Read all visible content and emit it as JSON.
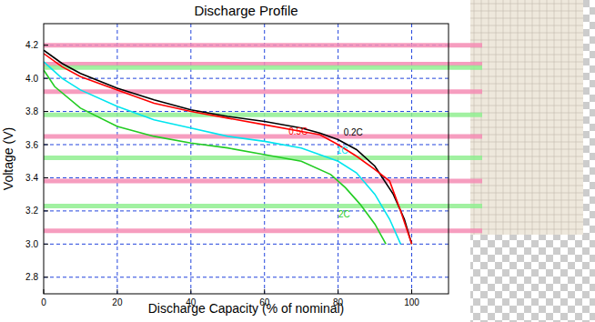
{
  "chart_data": {
    "type": "line",
    "title": "Discharge Profile",
    "x_label": "Discharge Capacity (% of nominal)",
    "y_label": "Voltage (V)",
    "xlim": [
      0,
      110
    ],
    "xticks": [
      0,
      20,
      40,
      60,
      80,
      100
    ],
    "ylim": [
      2.7,
      4.33
    ],
    "yticks": [
      2.8,
      {
        "value": 3,
        "label": "3.0"
      },
      3.2,
      3.4,
      3.6,
      3.8,
      {
        "value": 4,
        "label": "4.0"
      },
      4.2
    ],
    "grid": true,
    "series": [
      {
        "name": "0.2C",
        "color": "#000000",
        "x": [
          0,
          5,
          10,
          20,
          30,
          40,
          50,
          60,
          70,
          75,
          80,
          85,
          90,
          95,
          98,
          100
        ],
        "values": [
          4.17,
          4.09,
          4.03,
          3.94,
          3.87,
          3.81,
          3.77,
          3.74,
          3.7,
          3.67,
          3.63,
          3.57,
          3.47,
          3.3,
          3.15,
          3.0
        ]
      },
      {
        "name": "0.5C",
        "color": "#ff0000",
        "x": [
          0,
          5,
          10,
          20,
          30,
          40,
          50,
          60,
          70,
          75,
          80,
          85,
          90,
          94,
          97,
          100
        ],
        "values": [
          4.15,
          4.07,
          4.01,
          3.93,
          3.85,
          3.8,
          3.76,
          3.72,
          3.68,
          3.66,
          3.6,
          3.53,
          3.45,
          3.38,
          3.2,
          3.0
        ]
      },
      {
        "name": "1C",
        "color": "#00e5ee",
        "x": [
          0,
          5,
          10,
          20,
          30,
          40,
          50,
          60,
          70,
          80,
          85,
          90,
          94,
          97
        ],
        "values": [
          4.1,
          4.0,
          3.93,
          3.83,
          3.75,
          3.7,
          3.65,
          3.62,
          3.58,
          3.5,
          3.43,
          3.3,
          3.15,
          3.0
        ]
      },
      {
        "name": "2C",
        "color": "#22cc22",
        "x": [
          0,
          3,
          10,
          20,
          30,
          40,
          50,
          60,
          70,
          78,
          82,
          86,
          90,
          93
        ],
        "values": [
          4.05,
          3.95,
          3.82,
          3.71,
          3.65,
          3.61,
          3.58,
          3.54,
          3.5,
          3.42,
          3.34,
          3.24,
          3.12,
          3.0
        ]
      }
    ],
    "reference_lines": [
      {
        "y": 4.2,
        "color": "#f58cb4"
      },
      {
        "y": 4.086,
        "color": "#f58cb4"
      },
      {
        "y": 4.065,
        "color": "#90ee90"
      },
      {
        "y": 3.92,
        "color": "#f58cb4"
      },
      {
        "y": 3.78,
        "color": "#90ee90"
      },
      {
        "y": 3.65,
        "color": "#f58cb4"
      },
      {
        "y": 3.52,
        "color": "#90ee90"
      },
      {
        "y": 3.38,
        "color": "#f58cb4"
      },
      {
        "y": 3.23,
        "color": "#90ee90"
      },
      {
        "y": 3.08,
        "color": "#f58cb4"
      }
    ]
  }
}
